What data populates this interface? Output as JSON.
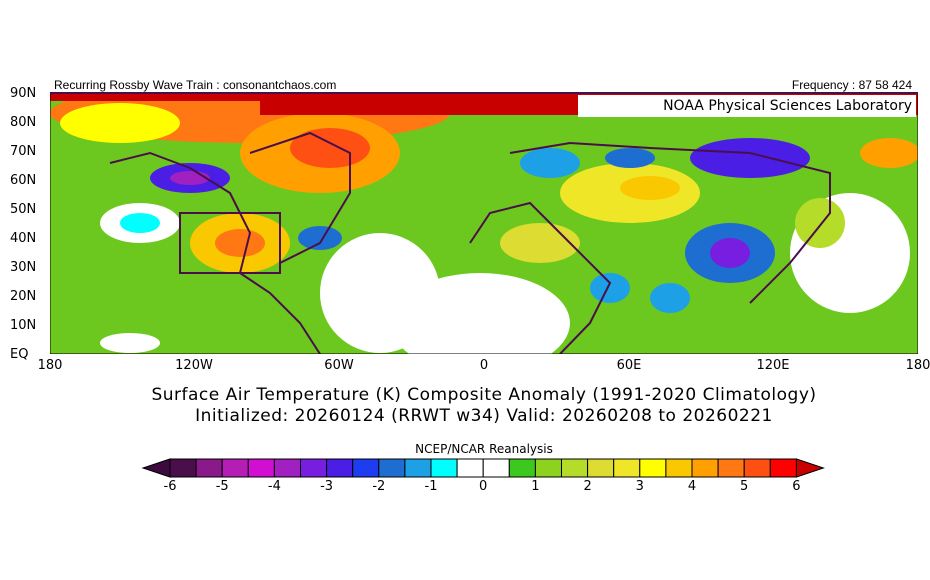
{
  "header": {
    "left": "Recurring Rossby Wave Train : consonantchaos.com",
    "right": "Frequency : 87 58 424",
    "lab": "NOAA Physical Sciences Laboratory"
  },
  "axes": {
    "y": [
      "90N",
      "80N",
      "70N",
      "60N",
      "50N",
      "40N",
      "30N",
      "20N",
      "10N",
      "EQ"
    ],
    "x": [
      "180",
      "120W",
      "60W",
      "0",
      "60E",
      "120E",
      "180"
    ]
  },
  "title": {
    "line1": "Surface Air Temperature (K) Composite Anomaly (1991-2020 Climatology)",
    "line2": "Initialized: 20260124 (RRWT w34) Valid: 20260208 to 20260221"
  },
  "colorbar": {
    "source": "NCEP/NCAR Reanalysis",
    "labels": [
      "-6",
      "-5",
      "-4",
      "-3",
      "-2",
      "-1",
      "0",
      "1",
      "2",
      "3",
      "4",
      "5",
      "6"
    ],
    "colors": [
      "#4a0f4a",
      "#8a1a8a",
      "#b41eb4",
      "#d20ed2",
      "#a020c0",
      "#781ee0",
      "#4b1ee6",
      "#1e3cf0",
      "#1e6ed2",
      "#1ea0e6",
      "#00ffff",
      "#ffffff",
      "#ffffff",
      "#3cc81e",
      "#8cd21e",
      "#b4dc28",
      "#dcdc32",
      "#f0e628",
      "#ffff00",
      "#fac800",
      "#ffa000",
      "#ff7814",
      "#ff5014",
      "#ff0000"
    ],
    "low_arrow": "#3c0a3c",
    "high_arrow": "#c80000"
  }
}
